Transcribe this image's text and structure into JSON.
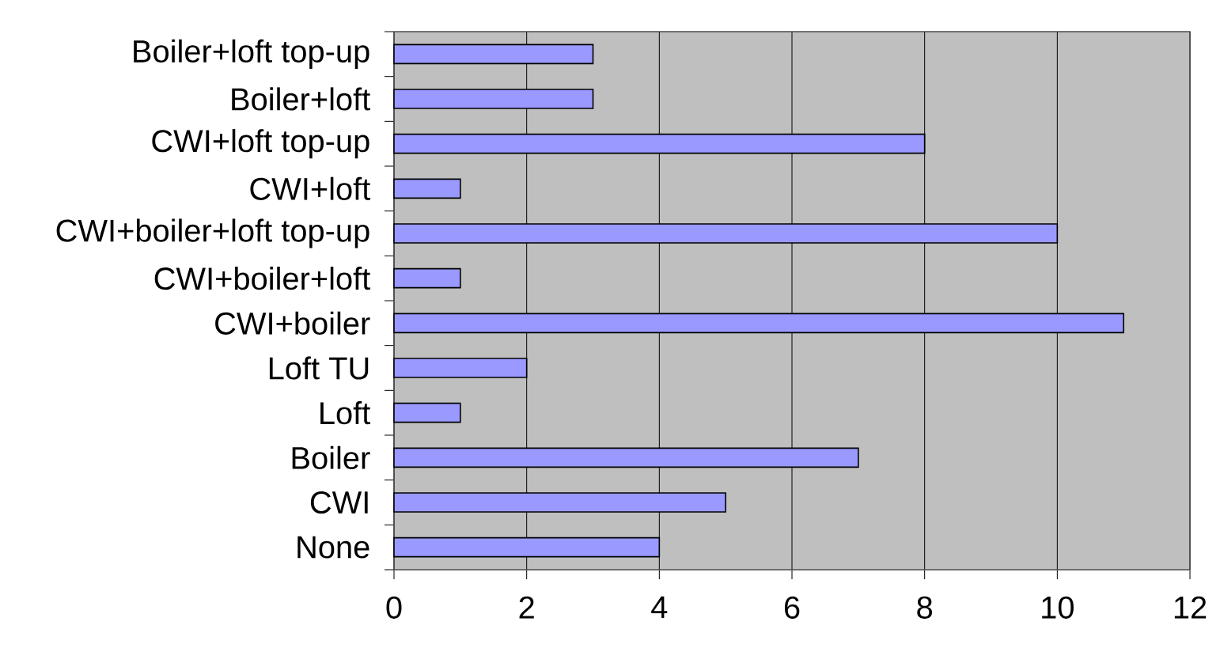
{
  "chart_data": {
    "type": "bar",
    "orientation": "horizontal",
    "categories": [
      "Boiler+loft top-up",
      "Boiler+loft",
      "CWI+loft top-up",
      "CWI+loft",
      "CWI+boiler+loft top-up",
      "CWI+boiler+loft",
      "CWI+boiler",
      "Loft TU",
      "Loft",
      "Boiler",
      "CWI",
      "None"
    ],
    "values": [
      3,
      3,
      8,
      1,
      10,
      1,
      11,
      2,
      1,
      7,
      5,
      4
    ],
    "color": "#9999ff",
    "xlim": [
      0,
      12
    ],
    "xticks": [
      0,
      2,
      4,
      6,
      8,
      10,
      12
    ],
    "grid": "x"
  }
}
